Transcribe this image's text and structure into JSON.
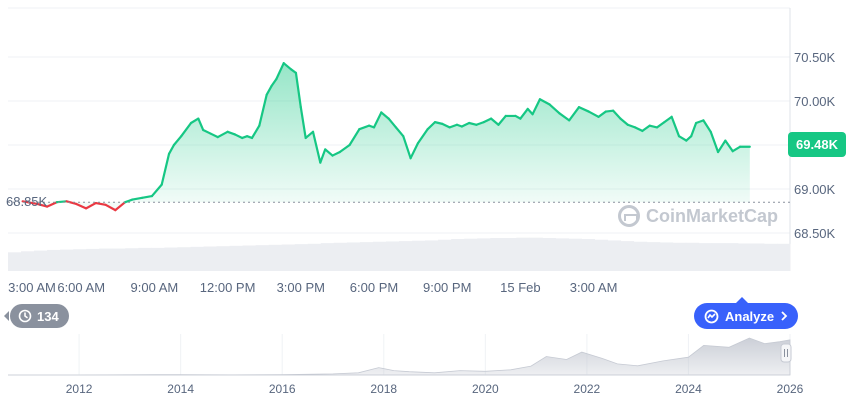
{
  "chart_data": {
    "type": "area",
    "y_ticks": [
      "70.50K",
      "70.00K",
      "69.00K",
      "68.50K"
    ],
    "x_ticks": [
      "3:00 AM",
      "6:00 AM",
      "9:00 AM",
      "12:00 PM",
      "3:00 PM",
      "6:00 PM",
      "9:00 PM",
      "15 Feb",
      "3:00 AM"
    ],
    "reference_price": 68.85,
    "reference_label": "68.85K",
    "current_price_label": "69.48K",
    "price_unit": "K",
    "series": [
      {
        "x": [
          0.6,
          1.2,
          1.6,
          2.0,
          2.4,
          2.8,
          3.2,
          3.6,
          4.0,
          4.4,
          4.8,
          5.1,
          5.5,
          5.9,
          6.3,
          6.6,
          6.8,
          7.1,
          7.5,
          7.8,
          8.0,
          8.3,
          8.6,
          9.0,
          9.3,
          9.6,
          9.8,
          10.0,
          10.3,
          10.6,
          10.8,
          11.0,
          11.3,
          11.6,
          11.8,
          12.0,
          12.2,
          12.5,
          12.8,
          13.0,
          13.3,
          13.6,
          14.0,
          14.4,
          14.8,
          15.0,
          15.3,
          15.6,
          15.9,
          16.2,
          16.5,
          16.8,
          17.2,
          17.5,
          17.8,
          18.1,
          18.4,
          18.6,
          18.9,
          19.2,
          19.5,
          19.8,
          20.1,
          20.4,
          20.8,
          21.0,
          21.3,
          21.5,
          21.8,
          22.2,
          22.6,
          23.0,
          23.4,
          23.8,
          24.2,
          24.5,
          24.8,
          25.1,
          25.4,
          25.7,
          26.0,
          26.3,
          26.6,
          26.9,
          27.2,
          27.5,
          27.8,
          28.0,
          28.2,
          28.5,
          28.8,
          29.1,
          29.4,
          29.7,
          30.0,
          30.4
        ],
        "values": [
          68.86,
          68.83,
          68.8,
          68.85,
          68.86,
          68.83,
          68.78,
          68.84,
          68.82,
          68.76,
          68.85,
          68.88,
          68.9,
          68.92,
          69.05,
          69.4,
          69.5,
          69.6,
          69.75,
          69.8,
          69.67,
          69.63,
          69.59,
          69.65,
          69.62,
          69.58,
          69.6,
          69.58,
          69.72,
          70.07,
          70.17,
          70.25,
          70.43,
          70.36,
          70.32,
          69.93,
          69.58,
          69.65,
          69.3,
          69.45,
          69.38,
          69.42,
          69.5,
          69.68,
          69.72,
          69.7,
          69.87,
          69.8,
          69.7,
          69.6,
          69.35,
          69.52,
          69.68,
          69.76,
          69.74,
          69.7,
          69.73,
          69.71,
          69.75,
          69.73,
          69.76,
          69.8,
          69.73,
          69.83,
          69.83,
          69.8,
          69.91,
          69.85,
          70.02,
          69.96,
          69.86,
          69.78,
          69.93,
          69.88,
          69.82,
          69.88,
          69.89,
          69.8,
          69.73,
          69.7,
          69.66,
          69.72,
          69.7,
          69.76,
          69.82,
          69.6,
          69.55,
          69.6,
          69.75,
          69.78,
          69.65,
          69.42,
          69.55,
          69.43,
          69.48,
          69.48
        ]
      }
    ],
    "volume": [
      0.55,
      0.58,
      0.6,
      0.62,
      0.63,
      0.64,
      0.65,
      0.66,
      0.66,
      0.67,
      0.68,
      0.68,
      0.69,
      0.7,
      0.71,
      0.72,
      0.73,
      0.74,
      0.75,
      0.76,
      0.77,
      0.78,
      0.79,
      0.8,
      0.82,
      0.83,
      0.84,
      0.85,
      0.86,
      0.87,
      0.88,
      0.89,
      0.9,
      0.92,
      0.94,
      0.95,
      0.96,
      0.97,
      0.97,
      0.98,
      0.98,
      0.97,
      0.96,
      0.95,
      0.94,
      0.92,
      0.9,
      0.88,
      0.86,
      0.85,
      0.84,
      0.83,
      0.83,
      0.82,
      0.82,
      0.82,
      0.81,
      0.81,
      0.8,
      0.8
    ],
    "navigator": {
      "year_ticks": [
        "2012",
        "2014",
        "2016",
        "2018",
        "2020",
        "2022",
        "2024",
        "2026"
      ],
      "x": [
        2010.6,
        2011,
        2012,
        2013,
        2013.5,
        2014,
        2015,
        2016,
        2017,
        2017.5,
        2017.9,
        2018.2,
        2018.5,
        2019,
        2019.5,
        2020,
        2020.5,
        2020.9,
        2021.2,
        2021.6,
        2021.9,
        2022.3,
        2022.6,
        2023,
        2023.5,
        2024,
        2024.3,
        2024.8,
        2025.2,
        2025.5,
        2025.8,
        2026
      ],
      "values": [
        0.0,
        0.0,
        0.0,
        0.005,
        0.01,
        0.008,
        0.004,
        0.008,
        0.03,
        0.06,
        0.2,
        0.12,
        0.09,
        0.06,
        0.12,
        0.1,
        0.14,
        0.24,
        0.5,
        0.42,
        0.62,
        0.45,
        0.3,
        0.25,
        0.38,
        0.48,
        0.8,
        0.75,
        1.0,
        0.85,
        0.9,
        0.95
      ]
    }
  },
  "brand": {
    "name": "CoinMarketCap"
  },
  "history_pill": {
    "count": "134"
  },
  "analyze": {
    "label": "Analyze"
  },
  "colors": {
    "up": "#16c784",
    "down": "#ea3943",
    "accent": "#3861fb"
  }
}
